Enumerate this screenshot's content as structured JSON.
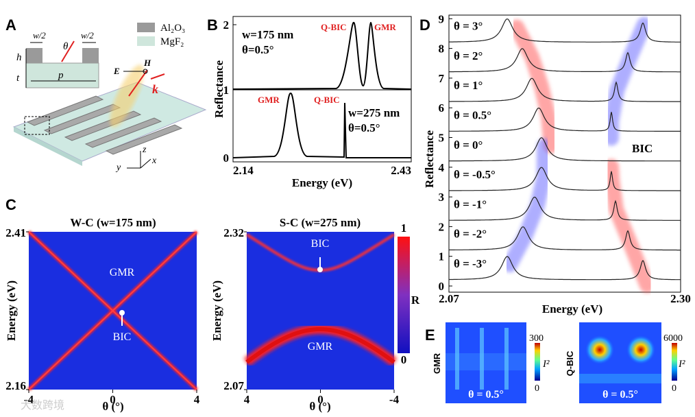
{
  "panel_labels": [
    "A",
    "B",
    "C",
    "D",
    "E"
  ],
  "panel_a": {
    "materials": [
      "Al₂O₃",
      "MgF₂"
    ],
    "dims": [
      "w/2",
      "θ",
      "w/2",
      "h",
      "t",
      "p"
    ],
    "field": [
      "E",
      "H",
      "k"
    ],
    "axes": [
      "z",
      "y",
      "x"
    ]
  },
  "panel_b": {
    "y_axis_label": "Reflectance",
    "x_axis_label": "Energy (eV)",
    "xticks": [
      2.14,
      2.43
    ],
    "yticks": [
      0,
      1,
      2
    ],
    "top": {
      "params": [
        "w=175 nm",
        "θ=0.5°"
      ],
      "peaks": [
        "Q-BIC",
        "GMR"
      ]
    },
    "bottom": {
      "params": [
        "w=275 nm",
        "θ=0.5°"
      ],
      "peaks": [
        "GMR",
        "Q-BIC"
      ]
    }
  },
  "panel_c": {
    "left": {
      "title": "W-C (w=175 nm)",
      "yticks": [
        2.41,
        2.16
      ],
      "xticks": [
        -4,
        0,
        4
      ],
      "labels": [
        "GMR",
        "BIC"
      ]
    },
    "right": {
      "title": "S-C (w=275 nm)",
      "yticks": [
        2.32,
        2.07
      ],
      "xticks": [
        4,
        0,
        -4
      ],
      "labels": [
        "BIC",
        "GMR"
      ]
    },
    "y_axis_label": "Energy (eV)",
    "x_axis_label": "θ (°)",
    "colorbar": {
      "ticks": [
        1,
        0
      ],
      "label": "R"
    }
  },
  "panel_d": {
    "y_axis_label": "Reflectance",
    "x_axis_label": "Energy (eV)",
    "xticks": [
      2.07,
      {
        "value": 2.3,
        "label": "2.30"
      }
    ],
    "yticks": [
      0,
      1,
      2,
      3,
      4,
      5,
      6,
      7,
      8,
      9
    ],
    "curves": [
      "θ = 3°",
      "θ = 2°",
      "θ = 1°",
      "θ = 0.5°",
      "θ = 0°",
      "θ = -0.5°",
      "θ = -1°",
      "θ = -2°",
      "θ = -3°"
    ],
    "annotation": "BIC"
  },
  "panel_e": {
    "maps": [
      {
        "label": "GMR",
        "max": 300,
        "min": 0,
        "quantity": "I²",
        "angle": "θ = 0.5°"
      },
      {
        "label": "Q-BIC",
        "max": 6000,
        "min": 0,
        "quantity": "I²",
        "angle": "θ = 0.5°"
      }
    ]
  },
  "watermark": "大数跨境"
}
